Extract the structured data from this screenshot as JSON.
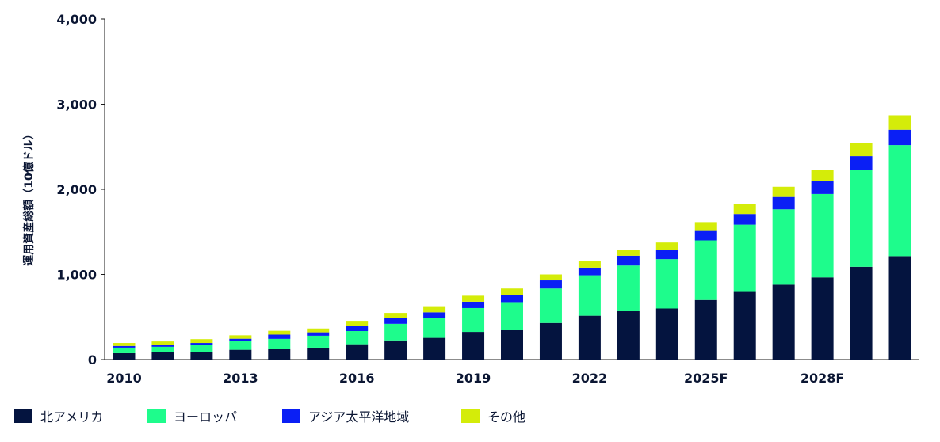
{
  "chart_data": {
    "type": "bar",
    "stacked": true,
    "ylabel": "運用資産総額（10億ドル）",
    "ylim": [
      0,
      4000
    ],
    "y_ticks": [
      "0",
      "1,000",
      "2,000",
      "3,000",
      "4,000"
    ],
    "y_tick_values": [
      0,
      1000,
      2000,
      3000,
      4000
    ],
    "categories": [
      "2010",
      "2011",
      "2012",
      "2013",
      "2014",
      "2015",
      "2016",
      "2017",
      "2018",
      "2019",
      "2020",
      "2021",
      "2022",
      "2023",
      "2024",
      "2025F",
      "2026F",
      "2027F",
      "2028F",
      "2029F",
      "2030F"
    ],
    "x_tick_labels": [
      {
        "index": 0,
        "label": "2010"
      },
      {
        "index": 3,
        "label": "2013"
      },
      {
        "index": 6,
        "label": "2016"
      },
      {
        "index": 9,
        "label": "2019"
      },
      {
        "index": 12,
        "label": "2022"
      },
      {
        "index": 15,
        "label": "2025F"
      },
      {
        "index": 18,
        "label": "2028F"
      }
    ],
    "series": [
      {
        "name": "北アメリカ",
        "color": "#04143f",
        "values": [
          75,
          88,
          90,
          115,
          125,
          140,
          180,
          225,
          255,
          325,
          345,
          430,
          515,
          575,
          600,
          700,
          795,
          880,
          965,
          1090,
          1215
        ]
      },
      {
        "name": "ヨーロッパ",
        "color": "#1efc8c",
        "values": [
          65,
          62,
          80,
          100,
          118,
          140,
          155,
          195,
          235,
          280,
          330,
          405,
          475,
          530,
          580,
          700,
          790,
          885,
          980,
          1135,
          1305
        ]
      },
      {
        "name": "アジア太平洋地域",
        "color": "#0a1ff5",
        "values": [
          20,
          23,
          25,
          30,
          50,
          40,
          62,
          65,
          65,
          75,
          85,
          95,
          90,
          115,
          110,
          120,
          125,
          145,
          155,
          165,
          180
        ]
      },
      {
        "name": "その他",
        "color": "#d4ec09",
        "values": [
          35,
          40,
          45,
          40,
          45,
          45,
          58,
          63,
          72,
          70,
          75,
          70,
          75,
          65,
          85,
          95,
          115,
          120,
          125,
          150,
          170
        ]
      }
    ]
  }
}
